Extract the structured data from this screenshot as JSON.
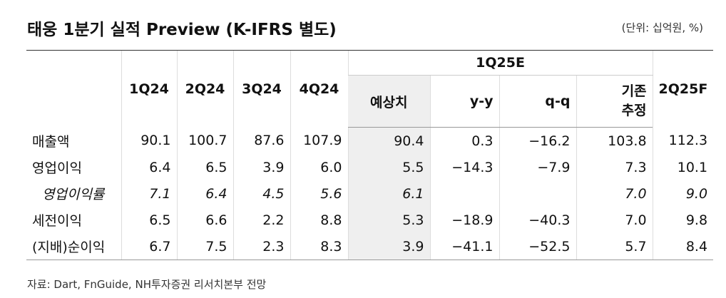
{
  "header": {
    "title": "태웅 1분기 실적 Preview (K-IFRS 별도)",
    "unit": "(단위: 십억원, %)"
  },
  "table": {
    "columns": [
      "1Q24",
      "2Q24",
      "3Q24",
      "4Q24"
    ],
    "group": "1Q25E",
    "group_columns": [
      "예상치",
      "y-y",
      "q-q",
      "기존\n추정"
    ],
    "last_column": "2Q25F",
    "rows": [
      [
        "매출액",
        "90.1",
        "100.7",
        "87.6",
        "107.9",
        "90.4",
        "0.3",
        "−16.2",
        "103.8",
        "112.3"
      ],
      [
        "영업이익",
        "6.4",
        "6.5",
        "3.9",
        "6.0",
        "5.5",
        "−14.3",
        "−7.9",
        "7.3",
        "10.1"
      ],
      [
        "영업이익률",
        "7.1",
        "6.4",
        "4.5",
        "5.6",
        "6.1",
        null,
        null,
        "7.0",
        "9.0"
      ],
      [
        "세전이익",
        "6.5",
        "6.6",
        "2.2",
        "8.8",
        "5.3",
        "−18.9",
        "−40.3",
        "7.0",
        "9.8"
      ],
      [
        "(지배)순이익",
        "6.7",
        "7.5",
        "2.3",
        "8.3",
        "3.9",
        "−41.1",
        "−52.5",
        "5.7",
        "8.4"
      ]
    ]
  },
  "source": "자료: Dart, FnGuide, NH투자증권 리서치본부 전망"
}
